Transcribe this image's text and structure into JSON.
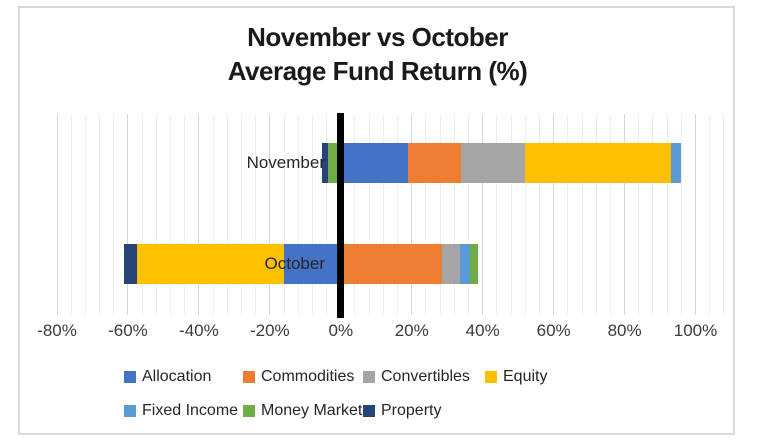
{
  "chart_data": {
    "type": "bar",
    "orientation": "horizontal-stacked",
    "title_lines": [
      "November vs October",
      "Average Fund Return (%)"
    ],
    "categories": [
      "November",
      "October"
    ],
    "series": [
      {
        "name": "Allocation",
        "color": "#4472C4",
        "values": [
          19,
          -16
        ]
      },
      {
        "name": "Commodities",
        "color": "#ED7D31",
        "values": [
          15,
          28.5
        ]
      },
      {
        "name": "Convertibles",
        "color": "#A5A5A5",
        "values": [
          18,
          5
        ]
      },
      {
        "name": "Equity",
        "color": "#FFC000",
        "values": [
          41,
          -41.5
        ]
      },
      {
        "name": "Fixed Income",
        "color": "#5B9BD5",
        "values": [
          3,
          2.8
        ]
      },
      {
        "name": "Money Market",
        "color": "#70AD47",
        "values": [
          -3.5,
          2.5
        ]
      },
      {
        "name": "Property",
        "color": "#264478",
        "values": [
          -1.7,
          -3.7
        ]
      }
    ],
    "x_axis": {
      "min": -80,
      "max": 110,
      "major_unit": 20,
      "minor_unit": 4,
      "tick_values": [
        -80,
        -60,
        -40,
        -20,
        0,
        20,
        40,
        60,
        80,
        100
      ],
      "tick_labels": [
        "-80%",
        "-60%",
        "-40%",
        "-20%",
        "0%",
        "20%",
        "40%",
        "60%",
        "80%",
        "100%"
      ]
    },
    "gridlines": {
      "major": true,
      "minor": true
    },
    "zero_line_color": "#000000",
    "legend_position": "bottom"
  }
}
